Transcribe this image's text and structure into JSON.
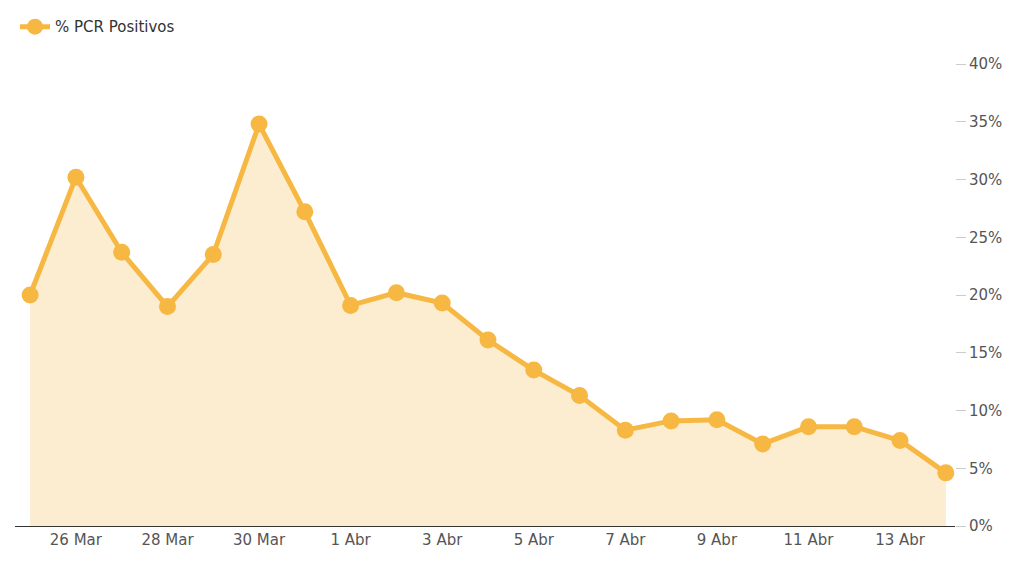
{
  "chart_data": {
    "type": "area",
    "categories": [
      null,
      "26 Mar",
      null,
      "28 Mar",
      null,
      "30 Mar",
      null,
      "1 Abr",
      null,
      "3 Abr",
      null,
      "5 Abr",
      null,
      "7 Abr",
      null,
      "9 Abr",
      null,
      "11 Abr",
      null,
      "13 Abr",
      null
    ],
    "series": [
      {
        "name": "% PCR Positivos",
        "color": "#f6b843",
        "values": [
          20,
          30.2,
          23.7,
          19.0,
          23.5,
          34.8,
          27.2,
          19.1,
          20.2,
          19.3,
          16.1,
          13.5,
          11.3,
          8.3,
          9.1,
          9.2,
          7.1,
          8.6,
          8.6,
          7.4,
          4.6
        ]
      }
    ],
    "ylim": [
      0,
      40
    ],
    "yticks": [
      {
        "value": 0,
        "label": "0%"
      },
      {
        "value": 5,
        "label": "5%"
      },
      {
        "value": 10,
        "label": "10%"
      },
      {
        "value": 15,
        "label": "15%"
      },
      {
        "value": 20,
        "label": "20%"
      },
      {
        "value": 25,
        "label": "25%"
      },
      {
        "value": 30,
        "label": "30%"
      },
      {
        "value": 35,
        "label": "35%"
      },
      {
        "value": 40,
        "label": "40%"
      }
    ],
    "grid": false,
    "legend": "top-left",
    "marker": "circle"
  }
}
